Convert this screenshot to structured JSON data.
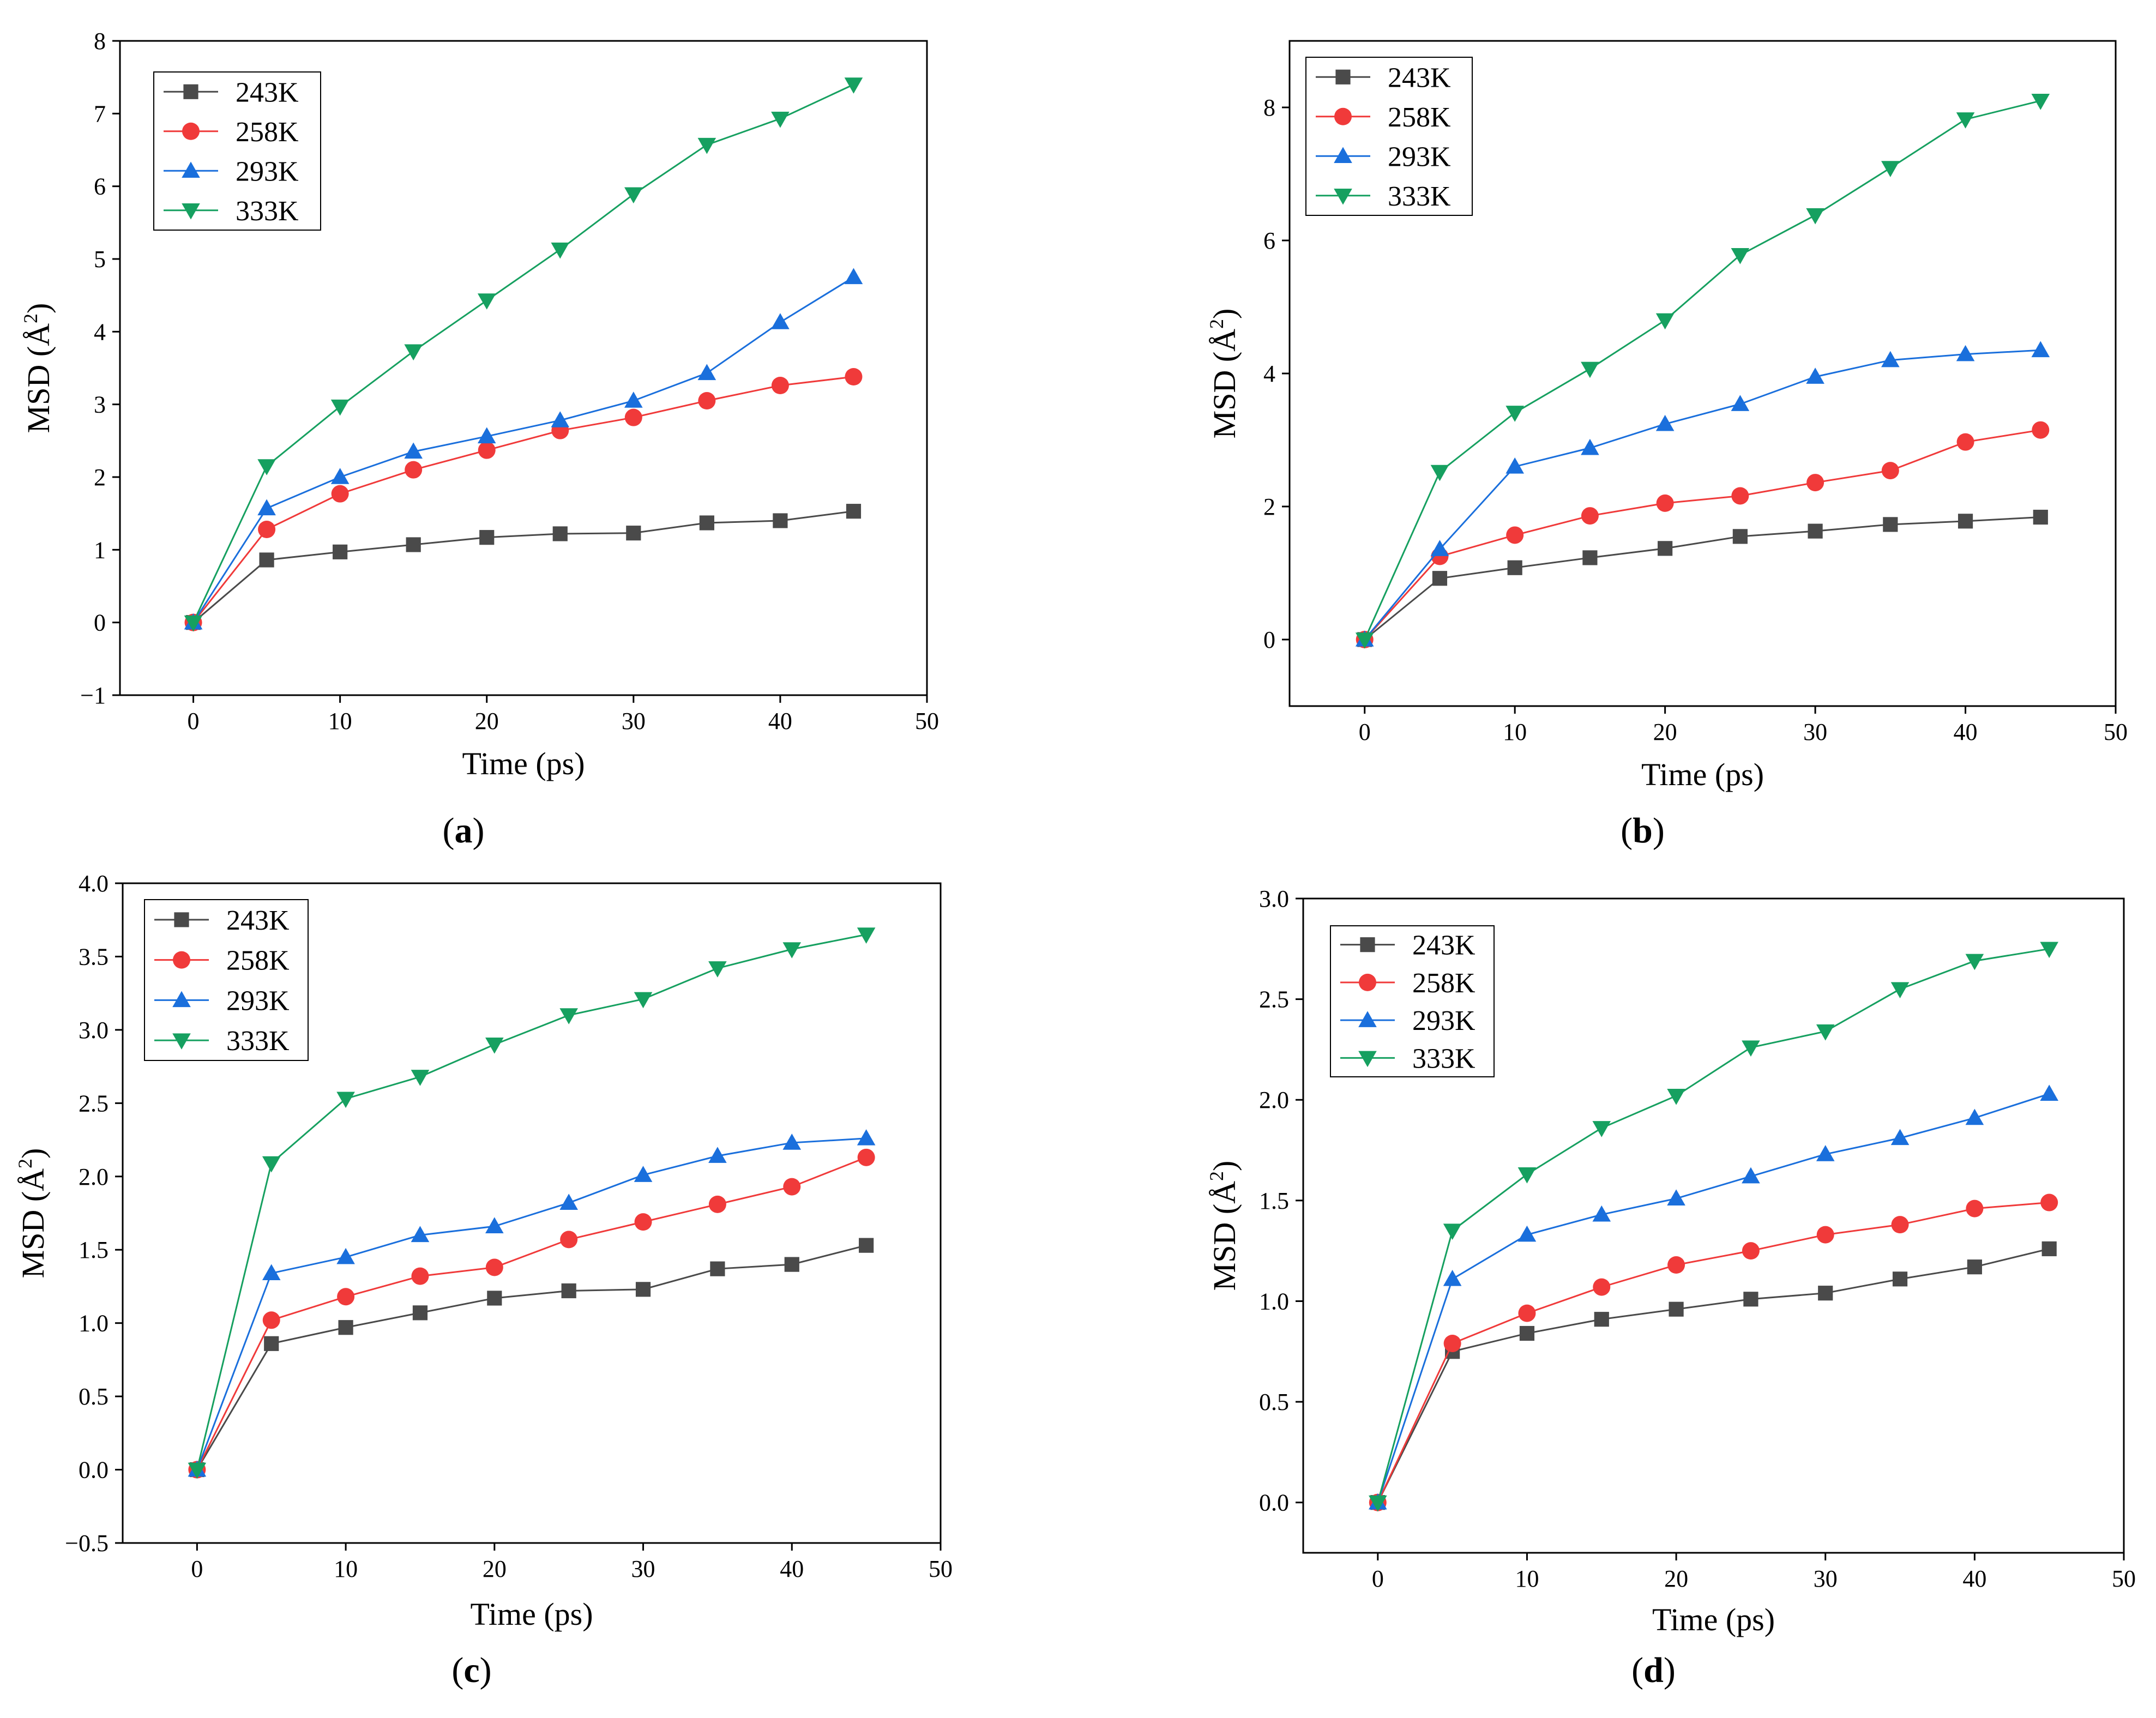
{
  "figure": {
    "series_colors": {
      "243K": "#4a4a4a",
      "258K": "#f03a3a",
      "293K": "#1a6fdc",
      "333K": "#16a060"
    },
    "series_markers": {
      "243K": "square",
      "258K": "circle",
      "293K": "triangle-up",
      "333K": "triangle-down"
    }
  },
  "chart_data": [
    {
      "type": "line",
      "panel": "a",
      "caption_open": "(",
      "caption_letter": "a",
      "caption_close": ")",
      "xlabel": "Time (ps)",
      "ylabel": "MSD (Å",
      "ylabel_sup": "2",
      "ylabel_end": ")",
      "xlim": [
        -5,
        50
      ],
      "ylim": [
        -1,
        8
      ],
      "xticks": [
        0,
        10,
        20,
        30,
        40,
        50
      ],
      "yticks": [
        -1,
        0,
        1,
        2,
        3,
        4,
        5,
        6,
        7,
        8
      ],
      "ytick_labels": [
        "−1",
        "0",
        "1",
        "2",
        "3",
        "4",
        "5",
        "6",
        "7",
        "8"
      ],
      "x": [
        0,
        5,
        10,
        15,
        20,
        25,
        30,
        35,
        40,
        45
      ],
      "legend_position": "top-left",
      "series": [
        {
          "name": "243K",
          "values": [
            0,
            0.86,
            0.97,
            1.07,
            1.17,
            1.22,
            1.23,
            1.37,
            1.4,
            1.53
          ]
        },
        {
          "name": "258K",
          "values": [
            0,
            1.28,
            1.77,
            2.1,
            2.37,
            2.64,
            2.82,
            3.05,
            3.26,
            3.38
          ]
        },
        {
          "name": "293K",
          "values": [
            0,
            1.57,
            2.0,
            2.35,
            2.56,
            2.78,
            3.05,
            3.43,
            4.13,
            4.75
          ]
        },
        {
          "name": "333K",
          "values": [
            0,
            2.15,
            2.97,
            3.73,
            4.43,
            5.13,
            5.89,
            6.57,
            6.93,
            7.4
          ]
        }
      ]
    },
    {
      "type": "line",
      "panel": "b",
      "caption_open": "(",
      "caption_letter": "b",
      "caption_close": ")",
      "xlabel": "Time (ps)",
      "ylabel": "MSD (Å",
      "ylabel_sup": "2",
      "ylabel_end": ")",
      "xlim": [
        -5,
        50
      ],
      "ylim": [
        -1,
        9
      ],
      "xticks": [
        0,
        10,
        20,
        30,
        40,
        50
      ],
      "yticks": [
        0,
        2,
        4,
        6,
        8
      ],
      "ytick_labels": [
        "0",
        "2",
        "4",
        "6",
        "8"
      ],
      "x": [
        0,
        5,
        10,
        15,
        20,
        25,
        30,
        35,
        40,
        45
      ],
      "legend_position": "top-left",
      "series": [
        {
          "name": "243K",
          "values": [
            0,
            0.92,
            1.08,
            1.23,
            1.37,
            1.55,
            1.63,
            1.73,
            1.78,
            1.84
          ]
        },
        {
          "name": "258K",
          "values": [
            0,
            1.25,
            1.57,
            1.86,
            2.05,
            2.16,
            2.36,
            2.54,
            2.97,
            3.15
          ]
        },
        {
          "name": "293K",
          "values": [
            0,
            1.36,
            2.6,
            2.88,
            3.24,
            3.54,
            3.95,
            4.2,
            4.29,
            4.35
          ]
        },
        {
          "name": "333K",
          "values": [
            0,
            2.52,
            3.41,
            4.07,
            4.8,
            5.78,
            6.38,
            7.09,
            7.82,
            8.1
          ]
        }
      ]
    },
    {
      "type": "line",
      "panel": "c",
      "caption_open": "(",
      "caption_letter": "c",
      "caption_close": ")",
      "xlabel": "Time (ps)",
      "ylabel": "MSD (Å",
      "ylabel_sup": "2",
      "ylabel_end": ")",
      "xlim": [
        -5,
        50
      ],
      "ylim": [
        -0.5,
        4.0
      ],
      "xticks": [
        0,
        10,
        20,
        30,
        40,
        50
      ],
      "yticks": [
        -0.5,
        0.0,
        0.5,
        1.0,
        1.5,
        2.0,
        2.5,
        3.0,
        3.5,
        4.0
      ],
      "ytick_labels": [
        "−0.5",
        "0.0",
        "0.5",
        "1.0",
        "1.5",
        "2.0",
        "2.5",
        "3.0",
        "3.5",
        "4.0"
      ],
      "x": [
        0,
        5,
        10,
        15,
        20,
        25,
        30,
        35,
        40,
        45
      ],
      "legend_position": "top-left",
      "series": [
        {
          "name": "243K",
          "values": [
            0,
            0.86,
            0.97,
            1.07,
            1.17,
            1.22,
            1.23,
            1.37,
            1.4,
            1.53
          ]
        },
        {
          "name": "258K",
          "values": [
            0,
            1.02,
            1.18,
            1.32,
            1.38,
            1.57,
            1.69,
            1.81,
            1.93,
            2.13
          ]
        },
        {
          "name": "293K",
          "values": [
            0,
            1.34,
            1.45,
            1.6,
            1.66,
            1.82,
            2.01,
            2.14,
            2.23,
            2.26
          ]
        },
        {
          "name": "333K",
          "values": [
            0,
            2.09,
            2.53,
            2.68,
            2.9,
            3.1,
            3.21,
            3.42,
            3.55,
            3.65
          ]
        }
      ]
    },
    {
      "type": "line",
      "panel": "d",
      "caption_open": "(",
      "caption_letter": "d",
      "caption_close": ")",
      "xlabel": "Time (ps)",
      "ylabel": "MSD (Å",
      "ylabel_sup": "2",
      "ylabel_end": ")",
      "xlim": [
        -5,
        50
      ],
      "ylim": [
        -0.25,
        3.0
      ],
      "xticks": [
        0,
        10,
        20,
        30,
        40,
        50
      ],
      "yticks": [
        0.0,
        0.5,
        1.0,
        1.5,
        2.0,
        2.5,
        3.0
      ],
      "ytick_labels": [
        "0.0",
        "0.5",
        "1.0",
        "1.5",
        "2.0",
        "2.5",
        "3.0"
      ],
      "x": [
        0,
        5,
        10,
        15,
        20,
        25,
        30,
        35,
        40,
        45
      ],
      "legend_position": "top-left",
      "series": [
        {
          "name": "243K",
          "values": [
            0,
            0.75,
            0.84,
            0.91,
            0.96,
            1.01,
            1.04,
            1.11,
            1.17,
            1.26
          ]
        },
        {
          "name": "258K",
          "values": [
            0,
            0.79,
            0.94,
            1.07,
            1.18,
            1.25,
            1.33,
            1.38,
            1.46,
            1.49
          ]
        },
        {
          "name": "293K",
          "values": [
            0,
            1.11,
            1.33,
            1.43,
            1.51,
            1.62,
            1.73,
            1.81,
            1.91,
            2.03
          ]
        },
        {
          "name": "333K",
          "values": [
            0,
            1.35,
            1.63,
            1.86,
            2.02,
            2.26,
            2.34,
            2.55,
            2.69,
            2.75
          ]
        }
      ]
    }
  ]
}
